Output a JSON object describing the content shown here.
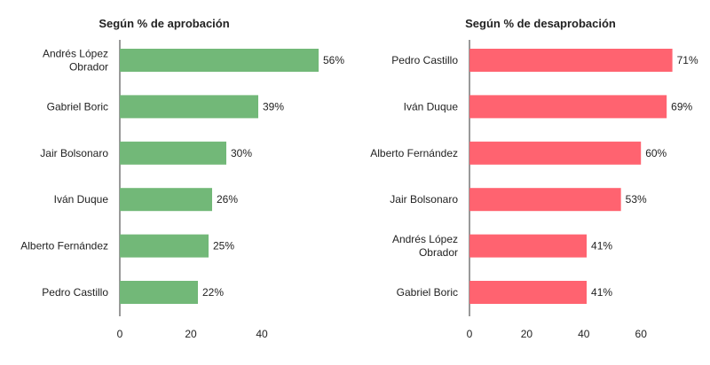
{
  "chart_data": [
    {
      "type": "bar",
      "orientation": "horizontal",
      "title": "Según % de aprobación",
      "categories": [
        "Andrés López Obrador",
        "Gabriel Boric",
        "Jair Bolsonaro",
        "Iván Duque",
        "Alberto Fernández",
        "Pedro Castillo"
      ],
      "category_lines": [
        [
          "Andrés López",
          "Obrador"
        ],
        [
          "Gabriel Boric"
        ],
        [
          "Jair Bolsonaro"
        ],
        [
          "Iván Duque"
        ],
        [
          "Alberto Fernández"
        ],
        [
          "Pedro Castillo"
        ]
      ],
      "values": [
        56,
        39,
        30,
        26,
        25,
        22
      ],
      "labels": [
        "56%",
        "39%",
        "30%",
        "26%",
        "25%",
        "22%"
      ],
      "xticks": [
        0,
        20,
        40
      ],
      "xlim": [
        0,
        60
      ],
      "grid": false,
      "color": "#72b878"
    },
    {
      "type": "bar",
      "orientation": "horizontal",
      "title": "Según % de desaprobación",
      "categories": [
        "Pedro Castillo",
        "Iván Duque",
        "Alberto Fernández",
        "Jair Bolsonaro",
        "Andrés López Obrador",
        "Gabriel Boric"
      ],
      "category_lines": [
        [
          "Pedro Castillo"
        ],
        [
          "Iván Duque"
        ],
        [
          "Alberto Fernández"
        ],
        [
          "Jair Bolsonaro"
        ],
        [
          "Andrés López",
          "Obrador"
        ],
        [
          "Gabriel Boric"
        ]
      ],
      "values": [
        71,
        69,
        60,
        53,
        41,
        41
      ],
      "labels": [
        "71%",
        "69%",
        "60%",
        "53%",
        "41%",
        "41%"
      ],
      "xticks": [
        0,
        20,
        40,
        60
      ],
      "xlim": [
        0,
        74
      ],
      "grid": false,
      "color": "#ff6370"
    }
  ]
}
